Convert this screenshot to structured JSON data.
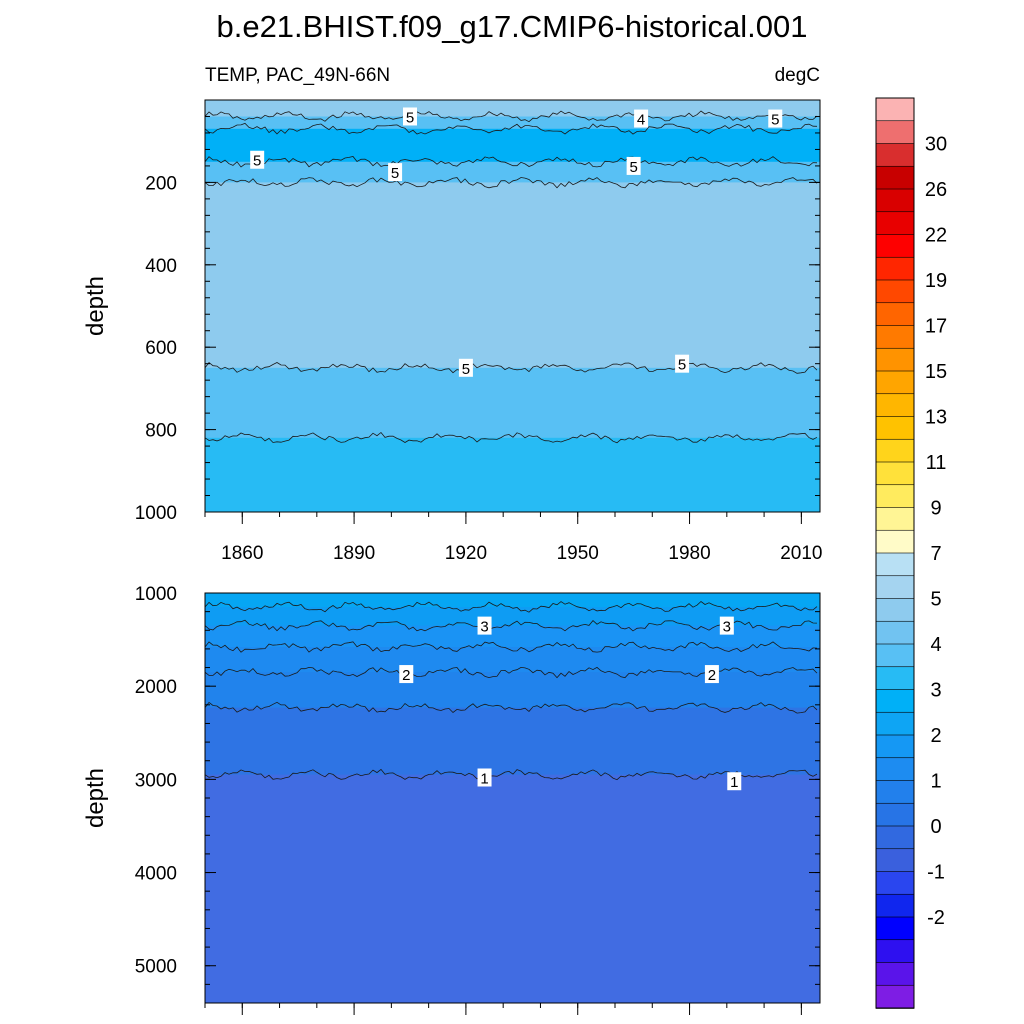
{
  "title": "b.e21.BHIST.f09_g17.CMIP6-historical.001",
  "subtitle_left": "TEMP, PAC_49N-66N",
  "subtitle_right": "degC",
  "chart_data": [
    {
      "type": "heatmap",
      "panel": "upper",
      "ylabel": "depth",
      "y_reversed": true,
      "xlim": [
        1850,
        2015
      ],
      "ylim": [
        0,
        1000
      ],
      "x_ticks": [
        1860,
        1890,
        1920,
        1950,
        1980,
        2010
      ],
      "y_ticks": [
        200,
        400,
        600,
        800,
        1000
      ],
      "bands": [
        {
          "depth_top": 0,
          "depth_bottom": 40,
          "level": "5-6",
          "color": "#8ecbee"
        },
        {
          "depth_top": 40,
          "depth_bottom": 70,
          "level": "4.5-5",
          "color": "#58c0f4"
        },
        {
          "depth_top": 70,
          "depth_bottom": 150,
          "level": "3.5-4.5",
          "color": "#00b0f7"
        },
        {
          "depth_top": 150,
          "depth_bottom": 200,
          "level": "4.5-5",
          "color": "#58c0f4"
        },
        {
          "depth_top": 200,
          "depth_bottom": 650,
          "level": "5-5.5",
          "color": "#8ecbee"
        },
        {
          "depth_top": 650,
          "depth_bottom": 820,
          "level": "4.5-5",
          "color": "#58c0f4"
        },
        {
          "depth_top": 820,
          "depth_bottom": 1000,
          "level": "4-4.5",
          "color": "#27bbf4"
        }
      ],
      "contour_labels": [
        {
          "text": "5",
          "x": 1905,
          "depth": 40
        },
        {
          "text": "4",
          "x": 1967,
          "depth": 45
        },
        {
          "text": "5",
          "x": 2003,
          "depth": 45
        },
        {
          "text": "5",
          "x": 1864,
          "depth": 145
        },
        {
          "text": "5",
          "x": 1901,
          "depth": 175
        },
        {
          "text": "5",
          "x": 1965,
          "depth": 160
        },
        {
          "text": "5",
          "x": 1920,
          "depth": 650
        },
        {
          "text": "5",
          "x": 1978,
          "depth": 640
        }
      ]
    },
    {
      "type": "heatmap",
      "panel": "lower",
      "ylabel": "depth",
      "y_reversed": true,
      "xlim": [
        1850,
        2015
      ],
      "ylim": [
        1000,
        5400
      ],
      "y_ticks": [
        1000,
        2000,
        3000,
        4000,
        5000
      ],
      "bands": [
        {
          "depth_top": 1000,
          "depth_bottom": 1150,
          "level": "3.5-4",
          "color": "#06a6f3"
        },
        {
          "depth_top": 1150,
          "depth_bottom": 1350,
          "level": "3-3.5",
          "color": "#0e9cf3"
        },
        {
          "depth_top": 1350,
          "depth_bottom": 1580,
          "level": "2.5-3",
          "color": "#1a93f4"
        },
        {
          "depth_top": 1580,
          "depth_bottom": 1850,
          "level": "2-2.5",
          "color": "#1e8af0"
        },
        {
          "depth_top": 1850,
          "depth_bottom": 2230,
          "level": "1.5-2",
          "color": "#2183ec"
        },
        {
          "depth_top": 2230,
          "depth_bottom": 2950,
          "level": "1-1.5",
          "color": "#2e74e4"
        },
        {
          "depth_top": 2950,
          "depth_bottom": 5400,
          "level": "0.5-1",
          "color": "#416ce2"
        }
      ],
      "contour_labels": [
        {
          "text": "3",
          "x": 1925,
          "depth": 1350
        },
        {
          "text": "3",
          "x": 1990,
          "depth": 1350
        },
        {
          "text": "2",
          "x": 1904,
          "depth": 1870
        },
        {
          "text": "2",
          "x": 1986,
          "depth": 1870
        },
        {
          "text": "1",
          "x": 1925,
          "depth": 2980
        },
        {
          "text": "1",
          "x": 1992,
          "depth": 3020
        }
      ]
    }
  ],
  "colorbar": {
    "orientation": "vertical",
    "labels": [
      "30",
      "26",
      "22",
      "19",
      "17",
      "15",
      "13",
      "11",
      "9",
      "7",
      "5",
      "4",
      "3",
      "2",
      "1",
      "0",
      "-1",
      "-2"
    ],
    "colors_top_to_bottom": [
      "#fbb3b3",
      "#ee6f6f",
      "#d92e2e",
      "#c80000",
      "#d90000",
      "#e80000",
      "#fe0000",
      "#ff2600",
      "#ff4800",
      "#ff6500",
      "#ff7a00",
      "#ff9300",
      "#ffa500",
      "#ffb600",
      "#ffc200",
      "#ffd41b",
      "#ffe13a",
      "#ffeb5e",
      "#fff595",
      "#fffbc8",
      "#b8e0f4",
      "#a5d4f0",
      "#8ecbee",
      "#71c3f1",
      "#58c0f4",
      "#27bbf4",
      "#00b0f7",
      "#0ea5f4",
      "#1598f4",
      "#1d8cf1",
      "#2280ec",
      "#2774e6",
      "#3169e0",
      "#3a60dd",
      "#2a46ef",
      "#1026ee",
      "#0000ff",
      "#2e10f0",
      "#5a14ea",
      "#7e1de4"
    ]
  }
}
